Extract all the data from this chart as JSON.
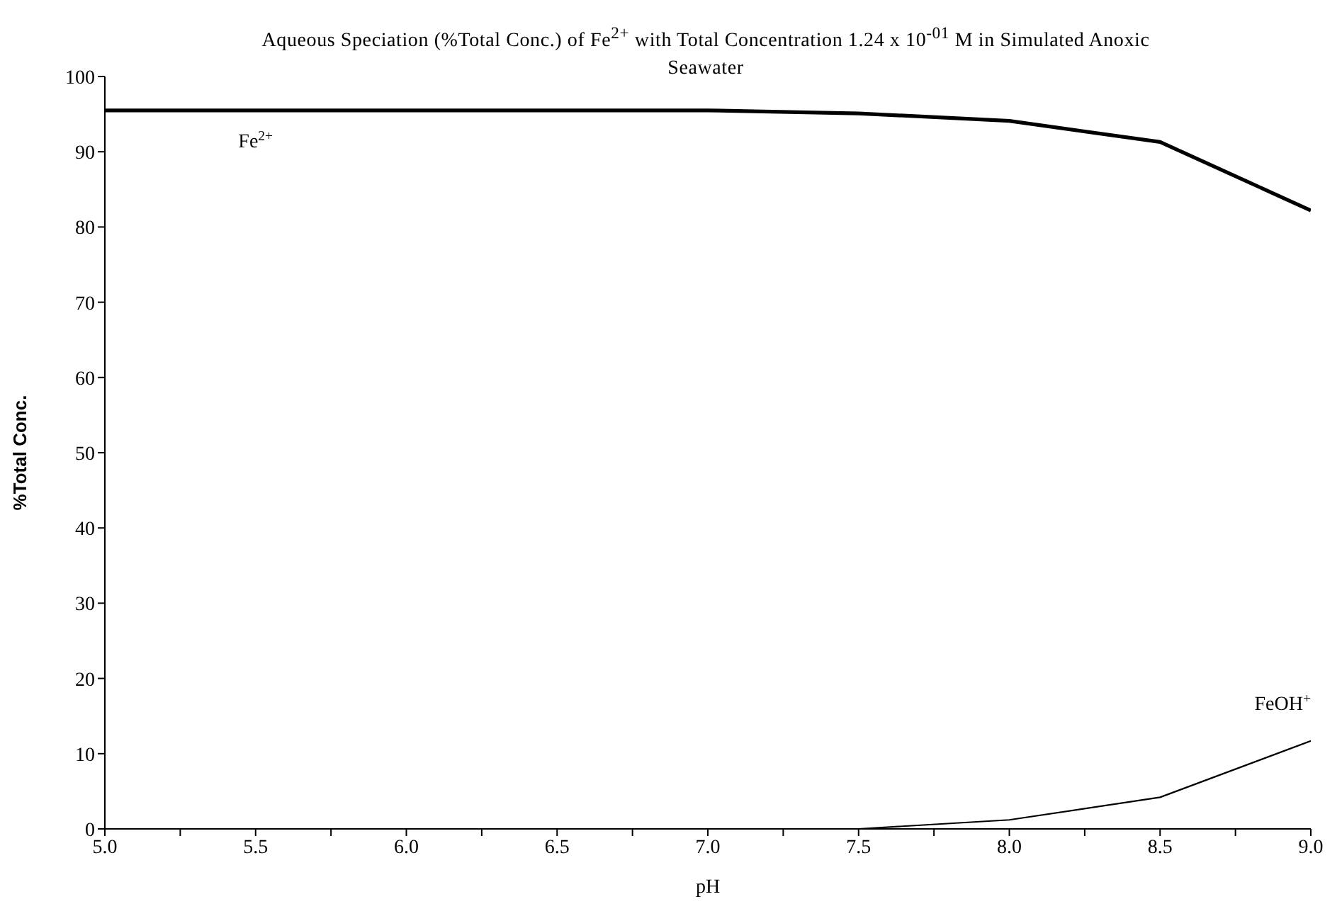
{
  "chart_data": {
    "type": "line",
    "title": "Aqueous Speciation (%Total Conc.) of Fe$^{2+}$ with Total Concentration 1.24 x 10$^{-01}$ M in Simulated Anoxic Seawater",
    "xlabel": "pH",
    "ylabel": "%Total Conc.",
    "x": [
      5.0,
      5.5,
      6.0,
      6.5,
      7.0,
      7.5,
      8.0,
      8.5,
      9.0
    ],
    "series": [
      {
        "name": "Fe$^{2+}$",
        "color": "#000000",
        "values": [
          95.5,
          95.5,
          95.5,
          95.5,
          95.5,
          95.1,
          94.1,
          91.3,
          82.2
        ]
      },
      {
        "name": "FeOH$^{+}$",
        "color": "#000000",
        "values": [
          0,
          0,
          0,
          0,
          0,
          0,
          1.2,
          4.2,
          11.7
        ]
      }
    ],
    "xlim": [
      5.0,
      9.0
    ],
    "ylim": [
      0,
      100
    ],
    "xticks": [
      {
        "value": 5.0,
        "label": "5.0"
      },
      {
        "value": 5.25,
        "label": null
      },
      {
        "value": 5.5,
        "label": "5.5"
      },
      {
        "value": 5.75,
        "label": null
      },
      {
        "value": 6.0,
        "label": "6.0"
      },
      {
        "value": 6.25,
        "label": null
      },
      {
        "value": 6.5,
        "label": "6.5"
      },
      {
        "value": 6.75,
        "label": null
      },
      {
        "value": 7.0,
        "label": "7.0"
      },
      {
        "value": 7.25,
        "label": null
      },
      {
        "value": 7.5,
        "label": "7.5"
      },
      {
        "value": 7.75,
        "label": null
      },
      {
        "value": 8.0,
        "label": "8.0"
      },
      {
        "value": 8.25,
        "label": null
      },
      {
        "value": 8.5,
        "label": "8.5"
      },
      {
        "value": 8.75,
        "label": null
      },
      {
        "value": 9.0,
        "label": "9.0"
      }
    ],
    "yticks": [
      0,
      10,
      20,
      30,
      40,
      50,
      60,
      70,
      80,
      90,
      100
    ],
    "grid": false,
    "legend": false
  }
}
